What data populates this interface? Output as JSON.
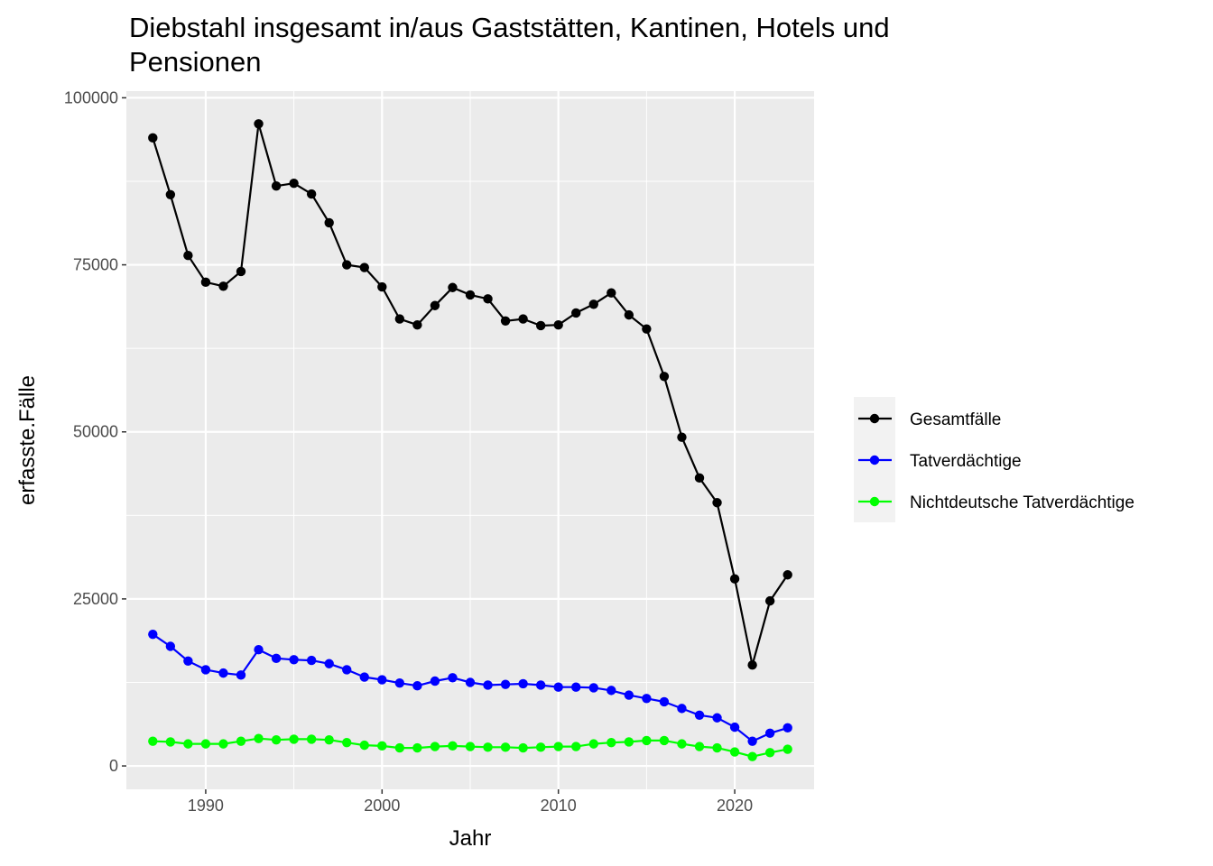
{
  "chart_data": {
    "type": "line",
    "title_lines": [
      "Diebstahl insgesamt in/aus Gaststätten, Kantinen, Hotels und",
      "Pensionen"
    ],
    "xlabel": "Jahr",
    "ylabel": "erfasste.Fälle",
    "xlim": [
      1985.5,
      2024.5
    ],
    "ylim": [
      -3500,
      101000
    ],
    "x_ticks": [
      1990,
      2000,
      2010,
      2020
    ],
    "y_ticks": [
      0,
      25000,
      50000,
      75000,
      100000
    ],
    "y_tick_labels": [
      "0",
      "25000",
      "50000",
      "75000",
      "100000"
    ],
    "grid": true,
    "legend_position": "right",
    "x": [
      1987,
      1988,
      1989,
      1990,
      1991,
      1992,
      1993,
      1994,
      1995,
      1996,
      1997,
      1998,
      1999,
      2000,
      2001,
      2002,
      2003,
      2004,
      2005,
      2006,
      2007,
      2008,
      2009,
      2010,
      2011,
      2012,
      2013,
      2014,
      2015,
      2016,
      2017,
      2018,
      2019,
      2020,
      2021,
      2022,
      2023
    ],
    "series": [
      {
        "name": "Gesamtfälle",
        "color": "#000000",
        "values": [
          94000,
          85500,
          76400,
          72400,
          71800,
          74000,
          96100,
          86800,
          87200,
          85600,
          81300,
          75000,
          74600,
          71700,
          66900,
          66000,
          68900,
          71600,
          70500,
          69900,
          66600,
          66900,
          65900,
          66000,
          67800,
          69100,
          70800,
          67500,
          65400,
          58300,
          49200,
          43100,
          39400,
          28000,
          15100,
          24700,
          28600
        ]
      },
      {
        "name": "Tatverdächtige",
        "color": "#0000ff",
        "values": [
          19700,
          17900,
          15700,
          14400,
          13900,
          13600,
          17400,
          16100,
          15900,
          15800,
          15300,
          14400,
          13300,
          12900,
          12400,
          12000,
          12700,
          13200,
          12500,
          12100,
          12200,
          12300,
          12100,
          11800,
          11800,
          11700,
          11300,
          10600,
          10100,
          9600,
          8600,
          7600,
          7200,
          5800,
          3700,
          4900,
          5700
        ]
      },
      {
        "name": "Nichtdeutsche Tatverdächtige",
        "color": "#00ff00",
        "values": [
          3700,
          3600,
          3300,
          3300,
          3300,
          3700,
          4100,
          3900,
          4000,
          4000,
          3900,
          3500,
          3100,
          3000,
          2700,
          2700,
          2900,
          3000,
          2900,
          2800,
          2800,
          2700,
          2800,
          2900,
          2900,
          3300,
          3500,
          3600,
          3800,
          3800,
          3300,
          2900,
          2700,
          2100,
          1400,
          2000,
          2500
        ]
      }
    ]
  }
}
